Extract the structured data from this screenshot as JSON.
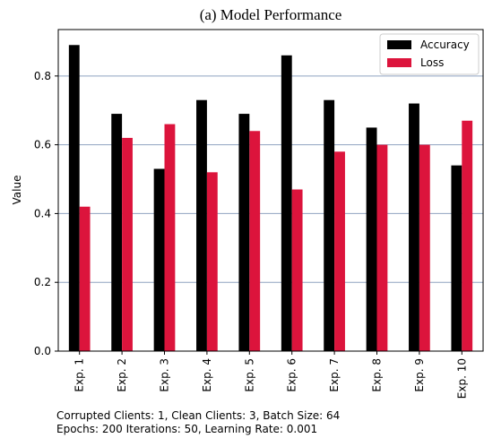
{
  "chart_data": {
    "type": "bar",
    "title": "(a) Model Performance",
    "y_label": "Value",
    "categories": [
      "Exp. 1",
      "Exp. 2",
      "Exp. 3",
      "Exp. 4",
      "Exp. 5",
      "Exp. 6",
      "Exp. 7",
      "Exp. 8",
      "Exp. 9",
      "Exp. 10"
    ],
    "series": [
      {
        "name": "Accuracy",
        "color": "#000000",
        "values": [
          0.89,
          0.69,
          0.53,
          0.73,
          0.69,
          0.86,
          0.73,
          0.65,
          0.72,
          0.54
        ]
      },
      {
        "name": "Loss",
        "color": "#dc143c",
        "values": [
          0.42,
          0.62,
          0.66,
          0.52,
          0.64,
          0.47,
          0.58,
          0.6,
          0.6,
          0.67
        ]
      }
    ],
    "ylim": [
      0,
      0.935
    ],
    "yticks": [
      {
        "value": 0,
        "label": "0.0"
      },
      0.2,
      0.4,
      0.6,
      0.8
    ],
    "grid": true,
    "grid_color": "#8fa3c0",
    "legend": "upper right",
    "annotations": [
      "Corrupted Clients: 1, Clean Clients: 3, Batch Size: 64",
      "Epochs: 200 Iterations: 50, Learning Rate: 0.001"
    ]
  }
}
